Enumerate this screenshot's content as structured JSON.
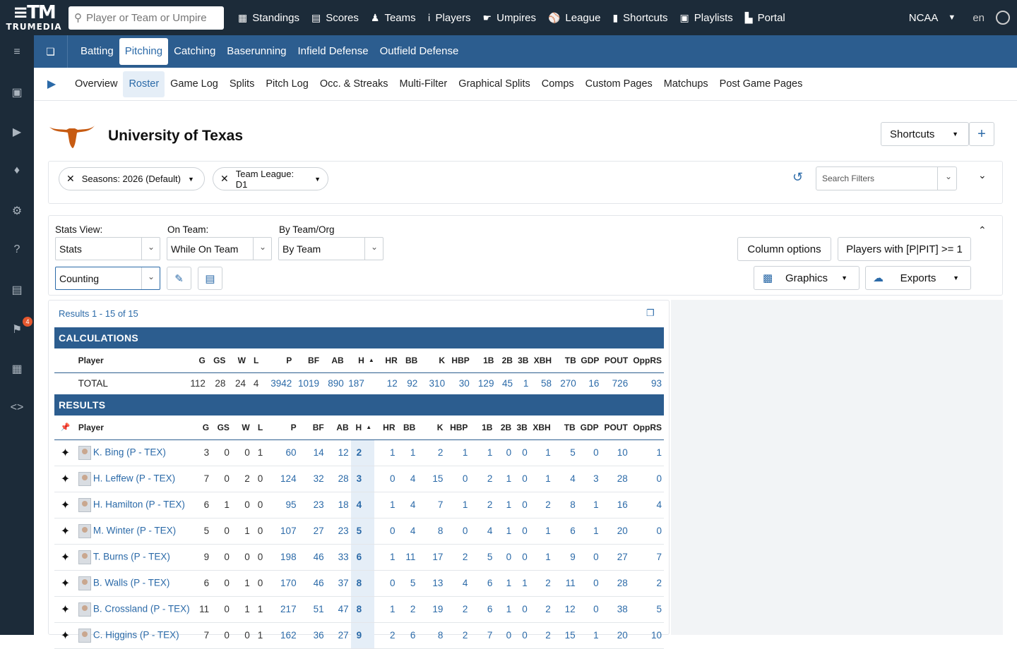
{
  "brand": {
    "logo_mark": "≡TM",
    "logo_word": "TRUMEDIA"
  },
  "search": {
    "placeholder": "Player or Team or Umpire"
  },
  "nav": [
    {
      "label": "Standings",
      "icon": "table-icon"
    },
    {
      "label": "Scores",
      "icon": "grid-icon"
    },
    {
      "label": "Teams",
      "icon": "users-icon"
    },
    {
      "label": "Players",
      "icon": "person-icon"
    },
    {
      "label": "Umpires",
      "icon": "thumbs-icon"
    },
    {
      "label": "League",
      "icon": "baseball-icon"
    },
    {
      "label": "Shortcuts",
      "icon": "bookmark-icon"
    },
    {
      "label": "Playlists",
      "icon": "playlist-icon"
    },
    {
      "label": "Portal",
      "icon": "portal-icon"
    }
  ],
  "top_right": {
    "league": "NCAA",
    "lang": "en"
  },
  "left_rail": {
    "badge": "4"
  },
  "tabs": [
    "Batting",
    "Pitching",
    "Catching",
    "Baserunning",
    "Infield Defense",
    "Outfield Defense"
  ],
  "subnav": [
    "Overview",
    "Roster",
    "Game Log",
    "Splits",
    "Pitch Log",
    "Occ. & Streaks",
    "Multi-Filter",
    "Graphical Splits",
    "Comps",
    "Custom Pages",
    "Matchups",
    "Post Game Pages"
  ],
  "team": {
    "name": "University of Texas",
    "shortcuts_label": "Shortcuts"
  },
  "filters": {
    "chip1": "Seasons: 2026 (Default)",
    "chip2": "Team League: D1",
    "search_placeholder": "Search Filters"
  },
  "controls": {
    "stats_view_label": "Stats View:",
    "stats_view_value": "Stats",
    "on_team_label": "On Team:",
    "on_team_value": "While On Team",
    "by_team_label": "By Team/Org",
    "by_team_value": "By Team",
    "mode_value": "Counting",
    "column_options": "Column options",
    "players_with": "Players with [P|PIT] >= 1",
    "graphics": "Graphics",
    "exports": "Exports"
  },
  "results_count": "Results 1 - 15 of 15",
  "sections": {
    "calc": "CALCULATIONS",
    "results": "RESULTS"
  },
  "columns": [
    "Player",
    "G",
    "GS",
    "W",
    "L",
    "P",
    "BF",
    "AB",
    "H",
    "HR",
    "BB",
    "K",
    "HBP",
    "1B",
    "2B",
    "3B",
    "XBH",
    "TB",
    "GDP",
    "POUT",
    "OppRS"
  ],
  "total": {
    "label": "TOTAL",
    "values": [
      "112",
      "28",
      "24",
      "4",
      "3942",
      "1019",
      "890",
      "187",
      "12",
      "92",
      "310",
      "30",
      "129",
      "45",
      "1",
      "58",
      "270",
      "16",
      "726",
      "93"
    ]
  },
  "rows": [
    {
      "name": "K. Bing (P - TEX)",
      "values": [
        "3",
        "0",
        "0",
        "1",
        "60",
        "14",
        "12",
        "2",
        "1",
        "1",
        "2",
        "1",
        "1",
        "0",
        "0",
        "1",
        "5",
        "0",
        "10",
        "1"
      ]
    },
    {
      "name": "H. Leffew (P - TEX)",
      "values": [
        "7",
        "0",
        "2",
        "0",
        "124",
        "32",
        "28",
        "3",
        "0",
        "4",
        "15",
        "0",
        "2",
        "1",
        "0",
        "1",
        "4",
        "3",
        "28",
        "0"
      ]
    },
    {
      "name": "H. Hamilton (P - TEX)",
      "values": [
        "6",
        "1",
        "0",
        "0",
        "95",
        "23",
        "18",
        "4",
        "1",
        "4",
        "7",
        "1",
        "2",
        "1",
        "0",
        "2",
        "8",
        "1",
        "16",
        "4"
      ]
    },
    {
      "name": "M. Winter (P - TEX)",
      "values": [
        "5",
        "0",
        "1",
        "0",
        "107",
        "27",
        "23",
        "5",
        "0",
        "4",
        "8",
        "0",
        "4",
        "1",
        "0",
        "1",
        "6",
        "1",
        "20",
        "0"
      ]
    },
    {
      "name": "T. Burns (P - TEX)",
      "values": [
        "9",
        "0",
        "0",
        "0",
        "198",
        "46",
        "33",
        "6",
        "1",
        "11",
        "17",
        "2",
        "5",
        "0",
        "0",
        "1",
        "9",
        "0",
        "27",
        "7"
      ]
    },
    {
      "name": "B. Walls (P - TEX)",
      "values": [
        "6",
        "0",
        "1",
        "0",
        "170",
        "46",
        "37",
        "8",
        "0",
        "5",
        "13",
        "4",
        "6",
        "1",
        "1",
        "2",
        "11",
        "0",
        "28",
        "2"
      ]
    },
    {
      "name": "B. Crossland (P - TEX)",
      "values": [
        "11",
        "0",
        "1",
        "1",
        "217",
        "51",
        "47",
        "8",
        "1",
        "2",
        "19",
        "2",
        "6",
        "1",
        "0",
        "2",
        "12",
        "0",
        "38",
        "5"
      ]
    },
    {
      "name": "C. Higgins (P - TEX)",
      "values": [
        "7",
        "0",
        "0",
        "1",
        "162",
        "36",
        "27",
        "9",
        "2",
        "6",
        "8",
        "2",
        "7",
        "0",
        "0",
        "2",
        "15",
        "1",
        "20",
        "10"
      ]
    }
  ],
  "colors": {
    "navy": "#1c2b39",
    "blue": "#2c5d8f",
    "link": "#2b6aa8",
    "highlight": "#e5eef7"
  }
}
